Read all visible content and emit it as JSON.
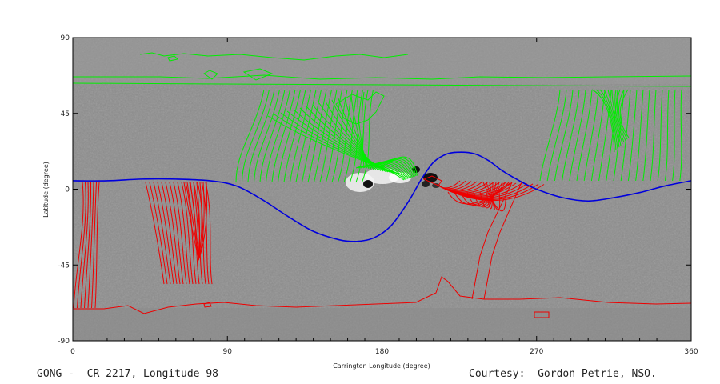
{
  "chart_data": {
    "type": "line",
    "xlabel": "Carrington Longitude (degree)",
    "ylabel": "Latitude (degree)",
    "xlim": [
      0,
      360
    ],
    "ylim": [
      -90,
      90
    ],
    "x_ticks": [
      "0",
      "90",
      "180",
      "270",
      "360"
    ],
    "y_ticks": [
      "90",
      "45",
      "0",
      "-45",
      "-90"
    ],
    "grid": false,
    "background": "grayscale magnetogram",
    "colors": {
      "neutral_line": "#0000dd",
      "positive_field_lines": "#00ee00",
      "negative_field_lines": "#ee0000",
      "frame": "#000000"
    },
    "series": [
      {
        "x": [
          0,
          20,
          40,
          60,
          80,
          95,
          110,
          125,
          140,
          155,
          165,
          175,
          185,
          195,
          203,
          210,
          218,
          226,
          234,
          242,
          250,
          260,
          270,
          285,
          300,
          315,
          330,
          345,
          360
        ],
        "y": [
          5,
          5,
          6,
          6,
          5,
          2,
          -6,
          -16,
          -25,
          -30,
          -31,
          -29,
          -22,
          -8,
          6,
          16,
          21,
          22,
          21,
          17,
          11,
          5,
          0,
          -5,
          -7,
          -5,
          -2,
          2,
          5
        ]
      }
    ]
  },
  "captions": {
    "left": "GONG -  CR 2217, Longitude 98",
    "right": "Courtesy:  Gordon Petrie, NSO."
  }
}
